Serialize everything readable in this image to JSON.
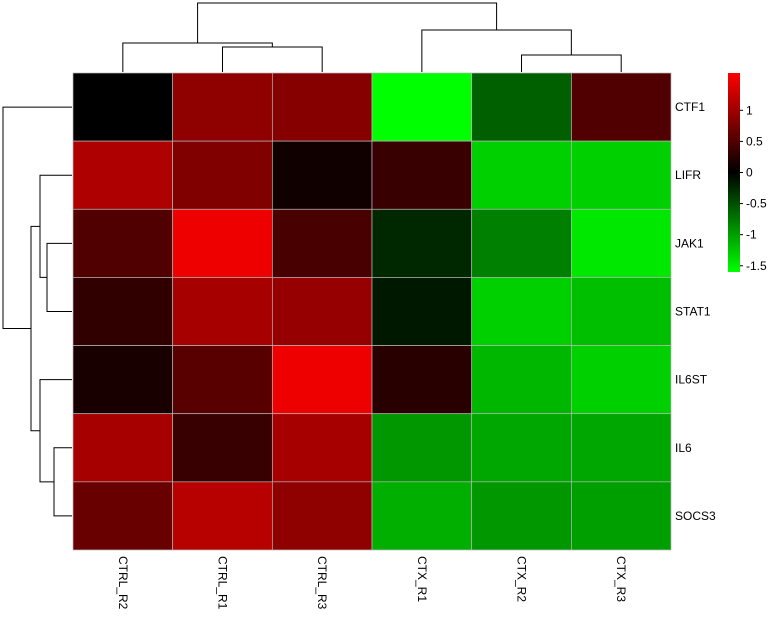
{
  "chart_data": {
    "type": "heatmap",
    "title": "",
    "rows": [
      "CTF1",
      "LIFR",
      "JAK1",
      "STAT1",
      "IL6ST",
      "IL6",
      "SOCS3"
    ],
    "columns": [
      "CTRL_R2",
      "CTRL_R1",
      "CTRL_R3",
      "CTX_R1",
      "CTX_R2",
      "CTX_R3"
    ],
    "values": [
      [
        0.0,
        0.9,
        0.85,
        -1.6,
        -0.6,
        0.5
      ],
      [
        1.1,
        0.8,
        0.1,
        0.35,
        -1.3,
        -1.3
      ],
      [
        0.5,
        1.5,
        0.45,
        -0.25,
        -0.8,
        -1.45
      ],
      [
        0.3,
        1.05,
        0.95,
        -0.15,
        -1.3,
        -1.2
      ],
      [
        0.15,
        0.55,
        1.5,
        0.25,
        -1.15,
        -1.3
      ],
      [
        1.05,
        0.35,
        1.05,
        -0.95,
        -1.05,
        -1.05
      ],
      [
        0.65,
        1.15,
        0.9,
        -1.1,
        -0.95,
        -1.0
      ]
    ],
    "color_scale": {
      "low": "#00ff00",
      "mid": "#000000",
      "high": "#ff0000",
      "range": [
        -1.6,
        1.6
      ],
      "ticks": [
        1,
        0.5,
        0,
        -0.5,
        -1,
        -1.5
      ]
    },
    "legend": "top-right",
    "dendrograms": {
      "columns": "top",
      "rows": "left"
    }
  }
}
